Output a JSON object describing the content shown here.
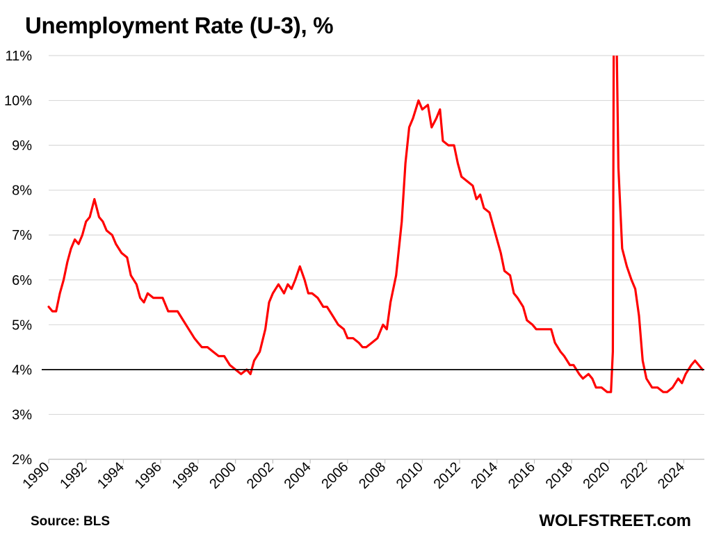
{
  "title": "Unemployment Rate (U-3), %",
  "source": "Source: BLS",
  "brand": "WOLFSTREET.com",
  "colors": {
    "line": "#ff0000",
    "reference": "#000000",
    "grid": "#d9d9d9"
  },
  "chart_data": {
    "type": "line",
    "title": "Unemployment Rate (U-3), %",
    "xlabel": "",
    "ylabel": "",
    "xlim": [
      1990,
      2025.1
    ],
    "ylim": [
      2,
      11
    ],
    "x_tick_labels": [
      "1990",
      "1992",
      "1994",
      "1996",
      "1998",
      "2000",
      "2002",
      "2004",
      "2006",
      "2008",
      "2010",
      "2012",
      "2014",
      "2016",
      "2018",
      "2020",
      "2022",
      "2024"
    ],
    "y_tick_labels": [
      "2%",
      "3%",
      "4%",
      "5%",
      "6%",
      "7%",
      "8%",
      "9%",
      "10%",
      "11%"
    ],
    "grid": "horizontal",
    "reference_line": {
      "y": 4
    },
    "series": [
      {
        "color": "#ff0000",
        "points": [
          [
            1990.0,
            5.4
          ],
          [
            1990.2,
            5.3
          ],
          [
            1990.4,
            5.3
          ],
          [
            1990.6,
            5.7
          ],
          [
            1990.8,
            6.0
          ],
          [
            1991.0,
            6.4
          ],
          [
            1991.2,
            6.7
          ],
          [
            1991.4,
            6.9
          ],
          [
            1991.6,
            6.8
          ],
          [
            1991.8,
            7.0
          ],
          [
            1992.0,
            7.3
          ],
          [
            1992.2,
            7.4
          ],
          [
            1992.45,
            7.8
          ],
          [
            1992.7,
            7.4
          ],
          [
            1992.9,
            7.3
          ],
          [
            1993.1,
            7.1
          ],
          [
            1993.4,
            7.0
          ],
          [
            1993.6,
            6.8
          ],
          [
            1993.9,
            6.6
          ],
          [
            1994.2,
            6.5
          ],
          [
            1994.4,
            6.1
          ],
          [
            1994.7,
            5.9
          ],
          [
            1994.9,
            5.6
          ],
          [
            1995.1,
            5.5
          ],
          [
            1995.3,
            5.7
          ],
          [
            1995.6,
            5.6
          ],
          [
            1995.9,
            5.6
          ],
          [
            1996.1,
            5.6
          ],
          [
            1996.4,
            5.3
          ],
          [
            1996.7,
            5.3
          ],
          [
            1996.9,
            5.3
          ],
          [
            1997.2,
            5.1
          ],
          [
            1997.5,
            4.9
          ],
          [
            1997.8,
            4.7
          ],
          [
            1998.0,
            4.6
          ],
          [
            1998.2,
            4.5
          ],
          [
            1998.5,
            4.5
          ],
          [
            1998.8,
            4.4
          ],
          [
            1999.1,
            4.3
          ],
          [
            1999.4,
            4.3
          ],
          [
            1999.7,
            4.1
          ],
          [
            2000.0,
            4.0
          ],
          [
            2000.3,
            3.9
          ],
          [
            2000.6,
            4.0
          ],
          [
            2000.8,
            3.9
          ],
          [
            2001.0,
            4.2
          ],
          [
            2001.3,
            4.4
          ],
          [
            2001.6,
            4.9
          ],
          [
            2001.8,
            5.5
          ],
          [
            2002.0,
            5.7
          ],
          [
            2002.3,
            5.9
          ],
          [
            2002.6,
            5.7
          ],
          [
            2002.8,
            5.9
          ],
          [
            2003.0,
            5.8
          ],
          [
            2003.2,
            6.0
          ],
          [
            2003.45,
            6.3
          ],
          [
            2003.7,
            6.0
          ],
          [
            2003.9,
            5.7
          ],
          [
            2004.1,
            5.7
          ],
          [
            2004.4,
            5.6
          ],
          [
            2004.7,
            5.4
          ],
          [
            2004.9,
            5.4
          ],
          [
            2005.2,
            5.2
          ],
          [
            2005.5,
            5.0
          ],
          [
            2005.8,
            4.9
          ],
          [
            2006.0,
            4.7
          ],
          [
            2006.3,
            4.7
          ],
          [
            2006.6,
            4.6
          ],
          [
            2006.8,
            4.5
          ],
          [
            2007.0,
            4.5
          ],
          [
            2007.3,
            4.6
          ],
          [
            2007.6,
            4.7
          ],
          [
            2007.9,
            5.0
          ],
          [
            2008.1,
            4.9
          ],
          [
            2008.3,
            5.5
          ],
          [
            2008.6,
            6.1
          ],
          [
            2008.9,
            7.3
          ],
          [
            2009.1,
            8.6
          ],
          [
            2009.3,
            9.4
          ],
          [
            2009.5,
            9.6
          ],
          [
            2009.8,
            10.0
          ],
          [
            2010.0,
            9.8
          ],
          [
            2010.3,
            9.9
          ],
          [
            2010.5,
            9.4
          ],
          [
            2010.75,
            9.6
          ],
          [
            2010.95,
            9.8
          ],
          [
            2011.1,
            9.1
          ],
          [
            2011.4,
            9.0
          ],
          [
            2011.7,
            9.0
          ],
          [
            2011.9,
            8.6
          ],
          [
            2012.1,
            8.3
          ],
          [
            2012.4,
            8.2
          ],
          [
            2012.7,
            8.1
          ],
          [
            2012.9,
            7.8
          ],
          [
            2013.1,
            7.9
          ],
          [
            2013.3,
            7.6
          ],
          [
            2013.6,
            7.5
          ],
          [
            2013.8,
            7.2
          ],
          [
            2014.0,
            6.9
          ],
          [
            2014.2,
            6.6
          ],
          [
            2014.4,
            6.2
          ],
          [
            2014.7,
            6.1
          ],
          [
            2014.9,
            5.7
          ],
          [
            2015.1,
            5.6
          ],
          [
            2015.4,
            5.4
          ],
          [
            2015.6,
            5.1
          ],
          [
            2015.9,
            5.0
          ],
          [
            2016.1,
            4.9
          ],
          [
            2016.3,
            4.9
          ],
          [
            2016.6,
            4.9
          ],
          [
            2016.9,
            4.9
          ],
          [
            2017.1,
            4.6
          ],
          [
            2017.4,
            4.4
          ],
          [
            2017.6,
            4.3
          ],
          [
            2017.9,
            4.1
          ],
          [
            2018.1,
            4.1
          ],
          [
            2018.4,
            3.9
          ],
          [
            2018.6,
            3.8
          ],
          [
            2018.9,
            3.9
          ],
          [
            2019.1,
            3.8
          ],
          [
            2019.3,
            3.6
          ],
          [
            2019.6,
            3.6
          ],
          [
            2019.9,
            3.5
          ],
          [
            2020.1,
            3.5
          ],
          [
            2020.2,
            4.4
          ],
          [
            2020.25,
            11.5
          ],
          [
            2020.4,
            11.5
          ],
          [
            2020.5,
            8.5
          ],
          [
            2020.7,
            6.7
          ],
          [
            2020.95,
            6.3
          ],
          [
            2021.2,
            6.0
          ],
          [
            2021.4,
            5.8
          ],
          [
            2021.6,
            5.2
          ],
          [
            2021.8,
            4.2
          ],
          [
            2022.0,
            3.8
          ],
          [
            2022.3,
            3.6
          ],
          [
            2022.6,
            3.6
          ],
          [
            2022.9,
            3.5
          ],
          [
            2023.1,
            3.5
          ],
          [
            2023.4,
            3.6
          ],
          [
            2023.7,
            3.8
          ],
          [
            2023.9,
            3.7
          ],
          [
            2024.1,
            3.9
          ],
          [
            2024.4,
            4.1
          ],
          [
            2024.6,
            4.2
          ],
          [
            2024.8,
            4.1
          ],
          [
            2025.0,
            4.0
          ]
        ]
      }
    ]
  }
}
